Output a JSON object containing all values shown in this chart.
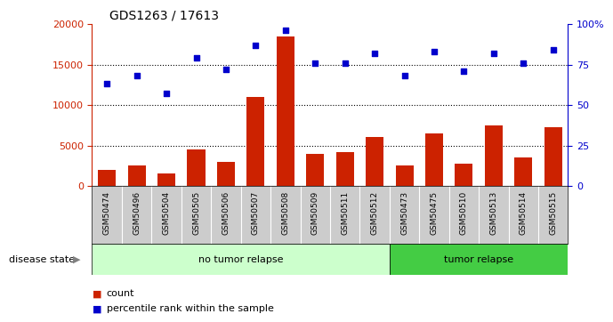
{
  "title": "GDS1263 / 17613",
  "samples": [
    "GSM50474",
    "GSM50496",
    "GSM50504",
    "GSM50505",
    "GSM50506",
    "GSM50507",
    "GSM50508",
    "GSM50509",
    "GSM50511",
    "GSM50512",
    "GSM50473",
    "GSM50475",
    "GSM50510",
    "GSM50513",
    "GSM50514",
    "GSM50515"
  ],
  "counts": [
    2000,
    2500,
    1500,
    4500,
    3000,
    11000,
    18500,
    4000,
    4200,
    6000,
    2500,
    6500,
    2800,
    7500,
    3500,
    7300
  ],
  "percentile_ranks": [
    63,
    68,
    57,
    79,
    72,
    87,
    96,
    76,
    76,
    82,
    68,
    83,
    71,
    82,
    76,
    84
  ],
  "no_relapse_count": 10,
  "tumor_relapse_count": 6,
  "ylim_left": [
    0,
    20000
  ],
  "ylim_right": [
    0,
    100
  ],
  "yticks_left": [
    0,
    5000,
    10000,
    15000,
    20000
  ],
  "yticks_right": [
    0,
    25,
    50,
    75,
    100
  ],
  "bar_color": "#cc2200",
  "scatter_color": "#0000cc",
  "no_relapse_color": "#ccffcc",
  "tumor_relapse_color": "#44cc44",
  "sample_bg_color": "#cccccc",
  "legend_count_color": "#cc2200",
  "legend_pct_color": "#0000cc",
  "disease_state_label": "disease state",
  "no_relapse_label": "no tumor relapse",
  "tumor_relapse_label": "tumor relapse",
  "count_legend": "count",
  "pct_legend": "percentile rank within the sample"
}
